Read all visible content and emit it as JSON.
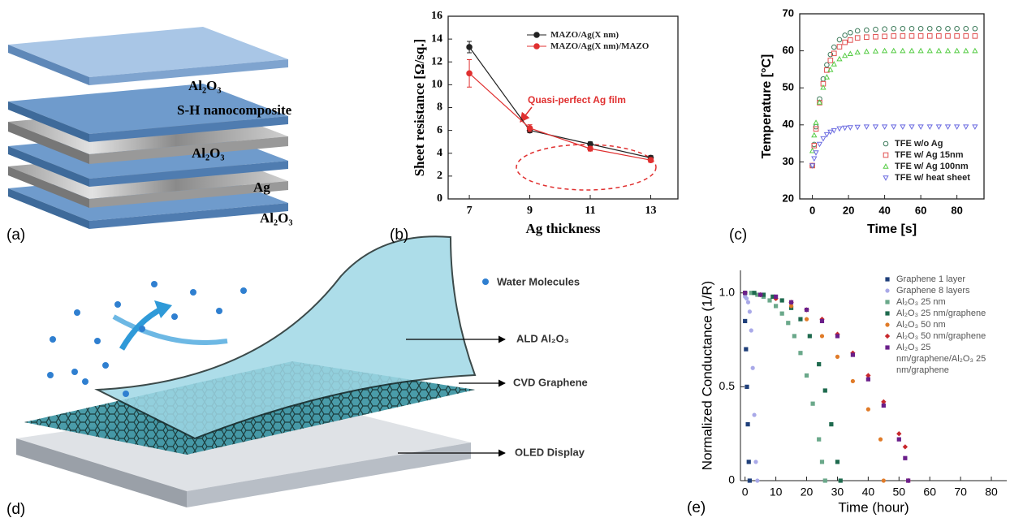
{
  "figure": {
    "panel_labels": [
      "(a)",
      "(b)",
      "(c)",
      "(d)",
      "(e)"
    ],
    "panel_a": {
      "layers": [
        "Al₂O₃",
        "S-H nanocomposite",
        "Al₂O₃",
        "Ag",
        "Al₂O₃"
      ]
    },
    "panel_d": {
      "legend": "Water Molecules",
      "labels": [
        "ALD Al₂O₃",
        "CVD Graphene",
        "OLED Display"
      ]
    }
  },
  "chart_data": [
    {
      "type": "line",
      "xlabel": "Ag thickness",
      "ylabel": "Sheet resistance [Ω/sq.]",
      "annotation": "Quasi-perfect Ag film",
      "x": [
        7,
        9,
        11,
        13
      ],
      "xlim": [
        6.3,
        13.9
      ],
      "xticks": [
        7,
        9,
        11,
        13
      ],
      "ylim": [
        0,
        16
      ],
      "yticks": [
        0,
        2,
        4,
        6,
        8,
        10,
        12,
        14,
        16
      ],
      "marker_fill": "filled",
      "legend": "upper right",
      "series": [
        {
          "name": "MAZO/Ag(X nm)",
          "color": "#222222",
          "marker": "circle",
          "values": [
            13.3,
            6.0,
            4.8,
            3.6
          ],
          "errors": [
            0.5,
            0.2,
            0.2,
            0.2
          ]
        },
        {
          "name": "MAZO/Ag(X nm)/MAZO",
          "color": "#e03030",
          "marker": "circle",
          "values": [
            11.0,
            6.2,
            4.4,
            3.4
          ],
          "errors": [
            1.2,
            0.3,
            0.2,
            0.2
          ]
        }
      ]
    },
    {
      "type": "scatter",
      "xlabel": "Time [s]",
      "ylabel": "Temperature [°C]",
      "x": [
        0,
        1,
        2,
        4,
        6,
        8,
        10,
        12,
        15,
        18,
        21,
        25,
        30,
        35,
        40,
        45,
        50,
        55,
        60,
        65,
        70,
        75,
        80,
        85,
        90
      ],
      "xlim": [
        -7,
        95
      ],
      "xticks": [
        0,
        20,
        40,
        60,
        80
      ],
      "ylim": [
        20,
        70
      ],
      "yticks": [
        20,
        30,
        40,
        50,
        60,
        70
      ],
      "marker_fill": "open",
      "legend": "lower right",
      "series": [
        {
          "name": "TFE w/o Ag",
          "color": "#3c7a5a",
          "marker": "circle",
          "values": [
            29,
            34.7,
            39.5,
            47.0,
            52.4,
            56.2,
            59.0,
            61.0,
            63.0,
            64.2,
            64.9,
            65.4,
            65.6,
            65.8,
            65.9,
            66,
            66,
            66,
            66,
            66,
            66,
            66,
            66,
            66,
            66
          ]
        },
        {
          "name": "TFE w/ Ag 15nm",
          "color": "#e05050",
          "marker": "square",
          "values": [
            29,
            34.4,
            38.9,
            46.0,
            51.1,
            54.8,
            57.4,
            59.3,
            61.1,
            62.3,
            62.9,
            63.5,
            63.7,
            63.8,
            63.9,
            64,
            64,
            64,
            64,
            64,
            64,
            64,
            64,
            64,
            64
          ]
        },
        {
          "name": "TFE w/ Ag 100nm",
          "color": "#55cc44",
          "marker": "triangle",
          "values": [
            33,
            37.2,
            40.6,
            46.1,
            50.1,
            52.9,
            54.9,
            56.4,
            57.8,
            58.7,
            59.2,
            59.6,
            59.8,
            59.9,
            60,
            60,
            60,
            60,
            60,
            60,
            60,
            60,
            60,
            60,
            60
          ]
        },
        {
          "name": "TFE w/ heat sheet",
          "color": "#6a6ae0",
          "marker": "triangle-down",
          "values": [
            29,
            30.9,
            32.5,
            34.8,
            36.3,
            37.4,
            38.1,
            38.5,
            39.0,
            39.2,
            39.3,
            39.4,
            39.5,
            39.5,
            39.5,
            39.5,
            39.5,
            39.5,
            39.5,
            39.5,
            39.5,
            39.5,
            39.5,
            39.5,
            39.5
          ]
        }
      ]
    },
    {
      "type": "scatter",
      "xlabel": "Time (hour)",
      "ylabel": "Normalized Conductance (1/R)",
      "xlim": [
        -1.5,
        85
      ],
      "xticks": [
        0,
        10,
        20,
        30,
        40,
        50,
        60,
        70,
        80
      ],
      "ylim": [
        0,
        1.12
      ],
      "yticks": [
        0,
        0.5,
        {
          "value": 1,
          "label": "1.0"
        }
      ],
      "marker_fill": "filled",
      "legend": "upper right",
      "series": [
        {
          "name": "Graphene 1 layer",
          "color": "#1f3f7a",
          "marker": "square",
          "x": [
            0,
            0.3,
            0.6,
            0.9,
            1.2,
            1.5
          ],
          "values": [
            0.85,
            0.7,
            0.5,
            0.3,
            0.1,
            0
          ]
        },
        {
          "name": "Graphene 8 layers",
          "color": "#a9a9e8",
          "marker": "circle",
          "x": [
            0,
            0.5,
            1,
            1.5,
            2,
            2.5,
            3,
            3.5,
            4
          ],
          "values": [
            0.98,
            0.97,
            0.95,
            0.9,
            0.8,
            0.6,
            0.35,
            0.1,
            0
          ]
        },
        {
          "name": "Al₂O₃ 25 nm",
          "color": "#6aa88a",
          "marker": "square",
          "x": [
            0,
            2,
            4,
            6,
            8,
            10,
            12,
            14,
            16,
            18,
            20,
            22,
            24,
            25,
            26
          ],
          "values": [
            1.0,
            1.0,
            0.99,
            0.98,
            0.96,
            0.93,
            0.89,
            0.84,
            0.77,
            0.68,
            0.56,
            0.41,
            0.22,
            0.1,
            0
          ]
        },
        {
          "name": "Al₂O₃ 25 nm/graphene",
          "color": "#1e6a4e",
          "marker": "square",
          "x": [
            0,
            3,
            6,
            9,
            12,
            15,
            18,
            21,
            24,
            26,
            28,
            30,
            31
          ],
          "values": [
            1,
            1,
            0.99,
            0.98,
            0.96,
            0.92,
            0.86,
            0.77,
            0.62,
            0.48,
            0.3,
            0.1,
            0
          ]
        },
        {
          "name": "Al₂O₃ 50 nm",
          "color": "#e07b28",
          "marker": "circle",
          "x": [
            0,
            5,
            10,
            15,
            20,
            25,
            30,
            35,
            40,
            44,
            45
          ],
          "values": [
            1,
            0.99,
            0.97,
            0.93,
            0.86,
            0.77,
            0.66,
            0.53,
            0.38,
            0.22,
            0
          ]
        },
        {
          "name": "Al₂O₃ 50 nm/graphene",
          "color": "#c8282d",
          "marker": "diamond",
          "x": [
            0,
            5,
            10,
            15,
            20,
            25,
            30,
            35,
            40,
            45,
            50,
            52,
            53
          ],
          "values": [
            1,
            0.99,
            0.97,
            0.95,
            0.91,
            0.86,
            0.78,
            0.68,
            0.56,
            0.42,
            0.25,
            0.18,
            0
          ]
        },
        {
          "name": "Al₂O₃ 25 nm/graphene/Al₂O₃ 25 nm/graphene",
          "color": "#6a1f8a",
          "marker": "square",
          "x": [
            0,
            5,
            10,
            15,
            20,
            25,
            30,
            35,
            40,
            45,
            50,
            52,
            53
          ],
          "values": [
            1,
            0.99,
            0.98,
            0.95,
            0.91,
            0.85,
            0.77,
            0.67,
            0.54,
            0.4,
            0.22,
            0.12,
            0
          ]
        }
      ]
    }
  ]
}
